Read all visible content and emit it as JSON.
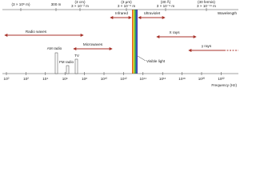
{
  "wavelength_axis": {
    "title": "Wavelength",
    "labels": [
      {
        "name": "(3 × 10⁸ m)"
      },
      {
        "name": "300 m"
      },
      {
        "name": "(3 cm)",
        "value": "3 × 10⁻² m"
      },
      {
        "name": "(3 μm)",
        "value": "3 × 10⁻⁶ m"
      },
      {
        "name": "(30 Å)",
        "value": "3 × 10⁻⁹ m"
      },
      {
        "name": "(30 fermis)",
        "value": "3 × 10⁻¹⁴ m"
      }
    ]
  },
  "frequency_axis": {
    "title": "Frequency (Hz)",
    "labels": [
      "10⁰",
      "10²",
      "10⁴",
      "10⁶",
      "10⁸",
      "10¹⁰",
      "10¹²",
      "10¹⁴",
      "10¹⁶",
      "10¹⁸",
      "10²⁰",
      "10²²"
    ]
  },
  "bands": {
    "radio": "Radio waves",
    "microwaves": "Microwaves",
    "infrared": "Infrared",
    "ultraviolet": "Ultraviolet",
    "xrays": "X rays",
    "gamma": "γ rays",
    "visible": "Visible light"
  },
  "radio_bands": {
    "am": "AM radio",
    "fm": "FM radio",
    "tv": "TV"
  }
}
